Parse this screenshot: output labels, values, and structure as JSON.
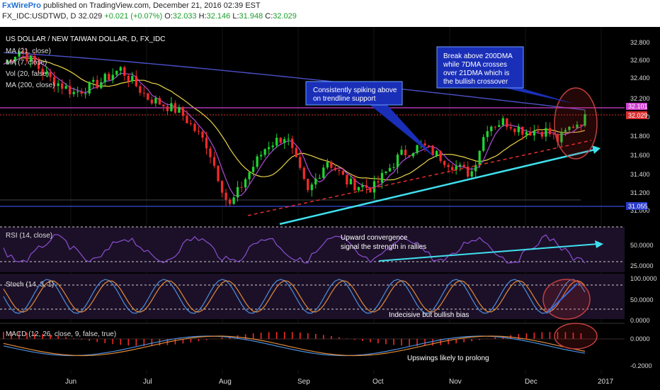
{
  "header": {
    "brand": "FxWirePro",
    "published": " published on TradingView.com, December 21, 2016 02:39 EST",
    "symbol": "FX_IDC:USDTWD, D",
    "last": "32.029",
    "change": "+0.021 (+0.07%)",
    "o_label": "O:",
    "o_value": "32.033",
    "h_label": "H:",
    "h_value": "32.146",
    "l_label": "L:",
    "l_value": "31.948",
    "c_label": "C:",
    "c_value": "32.029"
  },
  "colors": {
    "background": "#000000",
    "candle_up": "#1fd431",
    "candle_down": "#ef2b2b",
    "ma21": "#e8d44a",
    "ma7": "#b04bd8",
    "ma200": "#4b50c8",
    "trendline": "#3fe0ee",
    "support": "#d93030",
    "resistance": "#d040d0",
    "rsi": "#8a4fd0",
    "stoch_k": "#4a8fe0",
    "stoch_d": "#e08a3a",
    "macd": "#4a8fe0",
    "signal": "#e08a3a",
    "callout": "#1a2fb8"
  },
  "chart_data": {
    "type": "candlestick",
    "title": "US DOLLAR / NEW TAIWAN DOLLAR, D, FX_IDC",
    "indicators": [
      "MA (21, close)",
      "MA (7, close)",
      "Vol (20, false)",
      "MA (200, close)"
    ],
    "x_ticks": [
      "Jun",
      "Jul",
      "Aug",
      "Sep",
      "Oct",
      "Nov",
      "Dec",
      "2017"
    ],
    "y_ticks": [
      "32.800",
      "32.600",
      "32.400",
      "32.200",
      "32.000",
      "31.800",
      "31.600",
      "31.400",
      "31.200",
      "31.000"
    ],
    "ylim": [
      31.0,
      32.9
    ],
    "price_labels": [
      "32.101",
      "32.029",
      "31.055"
    ],
    "anchors": [
      [
        "2016-05-20",
        32.6
      ],
      [
        "2016-05-26",
        32.75
      ],
      [
        "2016-06-06",
        32.45
      ],
      [
        "2016-06-15",
        32.3
      ],
      [
        "2016-06-24",
        32.4
      ],
      [
        "2016-07-02",
        32.55
      ],
      [
        "2016-07-12",
        32.25
      ],
      [
        "2016-07-24",
        32.1
      ],
      [
        "2016-08-03",
        31.75
      ],
      [
        "2016-08-11",
        31.1
      ],
      [
        "2016-08-18",
        31.45
      ],
      [
        "2016-08-25",
        31.75
      ],
      [
        "2016-09-01",
        31.85
      ],
      [
        "2016-09-09",
        31.25
      ],
      [
        "2016-09-16",
        31.6
      ],
      [
        "2016-09-24",
        31.35
      ],
      [
        "2016-10-03",
        31.3
      ],
      [
        "2016-10-13",
        31.65
      ],
      [
        "2016-10-21",
        31.75
      ],
      [
        "2016-11-01",
        31.55
      ],
      [
        "2016-11-08",
        31.45
      ],
      [
        "2016-11-14",
        31.95
      ],
      [
        "2016-11-20",
        32.0
      ],
      [
        "2016-11-28",
        31.9
      ],
      [
        "2016-12-06",
        31.9
      ],
      [
        "2016-12-10",
        31.8
      ],
      [
        "2016-12-15",
        31.95
      ],
      [
        "2016-12-20",
        32.03
      ]
    ],
    "rsi": {
      "label": "RSI (14, close)",
      "y_ticks": [
        "50.0000",
        "25.0000"
      ]
    },
    "stoch": {
      "label": "Stoch (14, 3, 1)",
      "y_ticks": [
        "100.0000",
        "50.0000",
        "0.0000"
      ]
    },
    "macd": {
      "label": "MACD (12, 26, close, 9, false, true)",
      "y_ticks": [
        "0.0000",
        "-0.2000"
      ]
    },
    "annotations": {
      "callout_1": [
        "Consistently spiking above",
        "on trendline support"
      ],
      "callout_2": [
        "Break above 200DMA",
        "while 7DMA crosses",
        "over 21DMA which is",
        "the bullish crossover"
      ],
      "rsi_note": [
        "Upward convergence",
        "signal the strength in rallies"
      ],
      "stoch_note": "Indecisive but bullish bias",
      "macd_note": "Upswings likely to prolong"
    }
  }
}
